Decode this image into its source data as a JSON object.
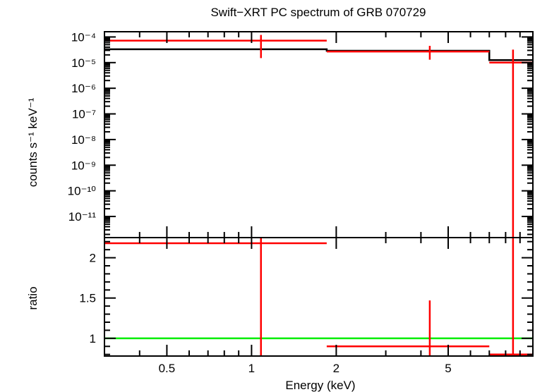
{
  "chart_data": {
    "type": "line",
    "title": "Swift−XRT PC spectrum of GRB 070729",
    "xlabel": "Energy (keV)",
    "x_scale": "log",
    "xlim": [
      0.3,
      10
    ],
    "x_ticks": [
      {
        "value": 0.5,
        "label": "0.5"
      },
      {
        "value": 1,
        "label": "1"
      },
      {
        "value": 2,
        "label": "2"
      },
      {
        "value": 5,
        "label": "5"
      }
    ],
    "panels": [
      {
        "name": "spectrum",
        "ylabel": "counts s⁻¹ keV⁻¹",
        "y_scale": "log",
        "ylim": [
          1.5e-12,
          0.00016
        ],
        "y_ticks": [
          {
            "value": 0.0001,
            "label": "10⁻⁴"
          },
          {
            "value": 1e-05,
            "label": "10⁻⁵"
          },
          {
            "value": 1e-06,
            "label": "10⁻⁶"
          },
          {
            "value": 1e-07,
            "label": "10⁻⁷"
          },
          {
            "value": 1e-08,
            "label": "10⁻⁸"
          },
          {
            "value": 1e-09,
            "label": "10⁻⁹"
          },
          {
            "value": 1e-10,
            "label": "10⁻¹⁰"
          },
          {
            "value": 1e-11,
            "label": "10⁻¹¹"
          }
        ],
        "data_points": [
          {
            "x": 1.08,
            "xlo": 0.3,
            "xhi": 1.85,
            "y": 7.2e-05,
            "ylo": 1.5e-05,
            "yhi": 0.00012
          },
          {
            "x": 4.3,
            "xlo": 1.85,
            "xhi": 7.0,
            "y": 2.7e-05,
            "ylo": 1.3e-05,
            "yhi": 4.5e-05
          },
          {
            "x": 8.5,
            "xlo": 7.0,
            "xhi": 10,
            "y": 1e-05,
            "ylo": 1.5e-12,
            "yhi": 3.2e-05
          }
        ],
        "model_steps": [
          {
            "x0": 0.3,
            "x1": 1.85,
            "y": 3.3e-05
          },
          {
            "x0": 1.85,
            "x1": 7.0,
            "y": 2.9e-05
          },
          {
            "x0": 7.0,
            "x1": 10,
            "y": 1.25e-05
          }
        ]
      },
      {
        "name": "ratio",
        "ylabel": "ratio",
        "y_scale": "linear",
        "ylim": [
          0.78,
          2.25
        ],
        "y_ticks": [
          {
            "value": 1,
            "label": "1"
          },
          {
            "value": 1.5,
            "label": "1.5"
          },
          {
            "value": 2,
            "label": "2"
          }
        ],
        "data_points": [
          {
            "x": 1.08,
            "xlo": 0.3,
            "xhi": 1.85,
            "y": 2.18,
            "ylo": 0.78,
            "yhi": 2.25
          },
          {
            "x": 4.3,
            "xlo": 1.85,
            "xhi": 7.0,
            "y": 0.9,
            "ylo": 0.78,
            "yhi": 1.47
          },
          {
            "x": 8.5,
            "xlo": 7.0,
            "xhi": 10,
            "y": 0.8,
            "ylo": 0.78,
            "yhi": 2.25
          }
        ],
        "reference_line": 1
      }
    ],
    "colors": {
      "data": "#ff0000",
      "model": "#000000",
      "reference": "#00ee00",
      "axes": "#000000"
    }
  }
}
